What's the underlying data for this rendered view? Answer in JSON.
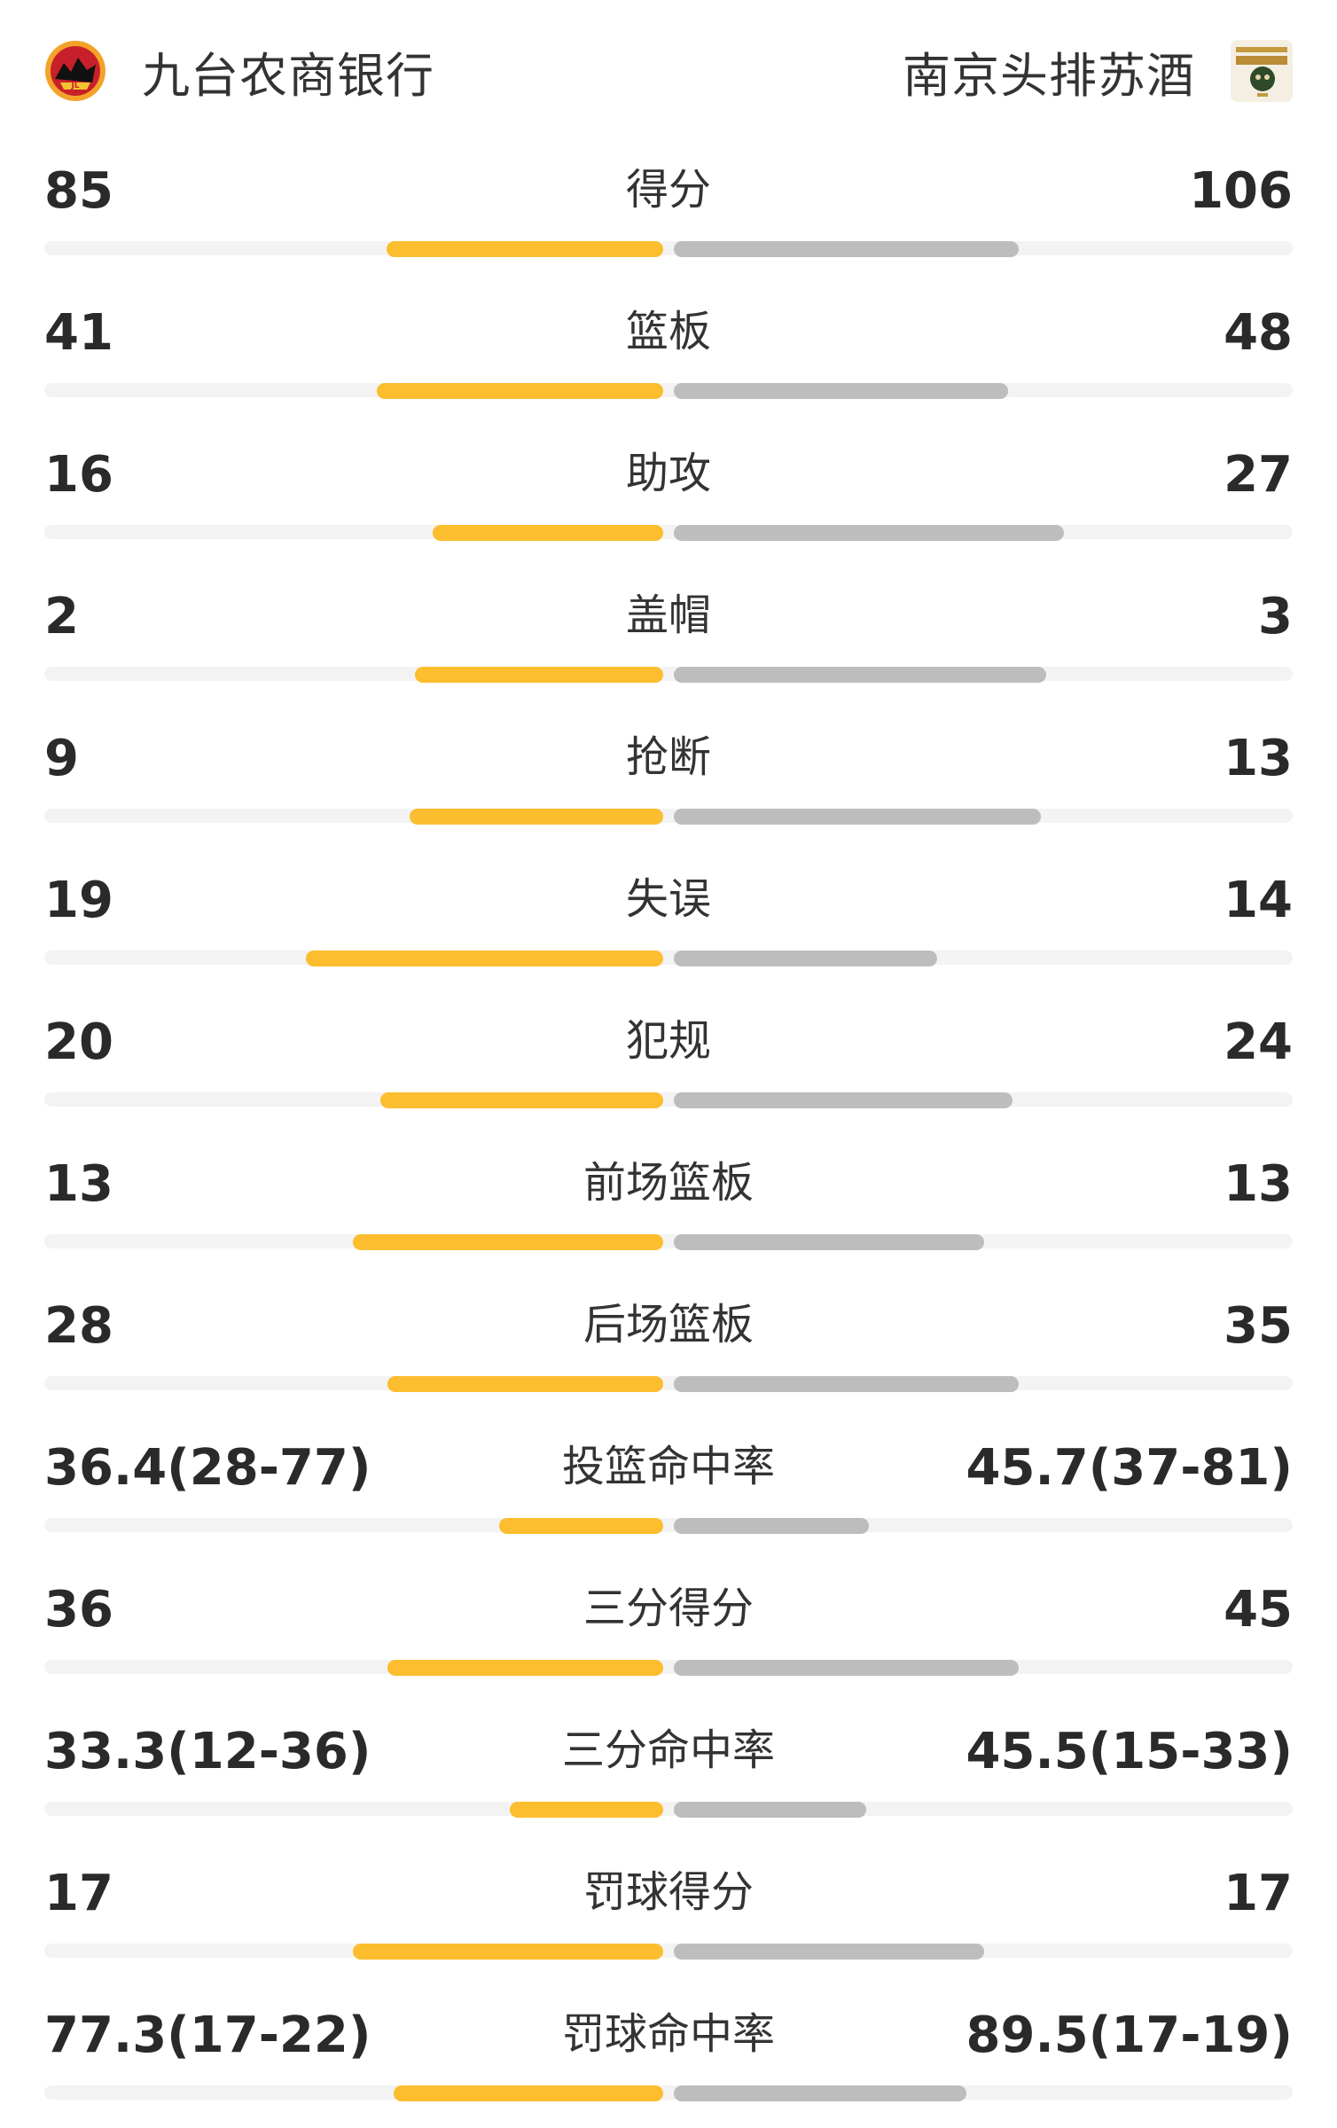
{
  "header": {
    "home_team": "九台农商银行",
    "away_team": "南京头排苏酒",
    "home_logo_icon": "jilin-team-logo-icon",
    "away_logo_icon": "monkey-kings-logo-icon"
  },
  "colors": {
    "home_bar": "#fcbd2e",
    "away_bar": "#bdbdbd",
    "track": "#f3f3f3"
  },
  "stats": [
    {
      "label": "得分",
      "home": "85",
      "away": "106",
      "home_share": 0.445,
      "away_share": 0.555
    },
    {
      "label": "篮板",
      "home": "41",
      "away": "48",
      "home_share": 0.461,
      "away_share": 0.539
    },
    {
      "label": "助攻",
      "home": "16",
      "away": "27",
      "home_share": 0.372,
      "away_share": 0.628
    },
    {
      "label": "盖帽",
      "home": "2",
      "away": "3",
      "home_share": 0.4,
      "away_share": 0.6
    },
    {
      "label": "抢断",
      "home": "9",
      "away": "13",
      "home_share": 0.409,
      "away_share": 0.591
    },
    {
      "label": "失误",
      "home": "19",
      "away": "14",
      "home_share": 0.576,
      "away_share": 0.424
    },
    {
      "label": "犯规",
      "home": "20",
      "away": "24",
      "home_share": 0.455,
      "away_share": 0.545
    },
    {
      "label": "前场篮板",
      "home": "13",
      "away": "13",
      "home_share": 0.5,
      "away_share": 0.5
    },
    {
      "label": "后场篮板",
      "home": "28",
      "away": "35",
      "home_share": 0.444,
      "away_share": 0.556
    },
    {
      "label": "投篮命中率",
      "home": "36.4(28-77)",
      "away": "45.7(37-81)",
      "home_share": 0.264,
      "away_share": 0.314
    },
    {
      "label": "三分得分",
      "home": "36",
      "away": "45",
      "home_share": 0.444,
      "away_share": 0.556
    },
    {
      "label": "三分命中率",
      "home": "33.3(12-36)",
      "away": "45.5(15-33)",
      "home_share": 0.247,
      "away_share": 0.31
    },
    {
      "label": "罚球得分",
      "home": "17",
      "away": "17",
      "home_share": 0.5,
      "away_share": 0.5
    },
    {
      "label": "罚球命中率",
      "home": "77.3(17-22)",
      "away": "89.5(17-19)",
      "home_share": 0.434,
      "away_share": 0.472
    }
  ]
}
